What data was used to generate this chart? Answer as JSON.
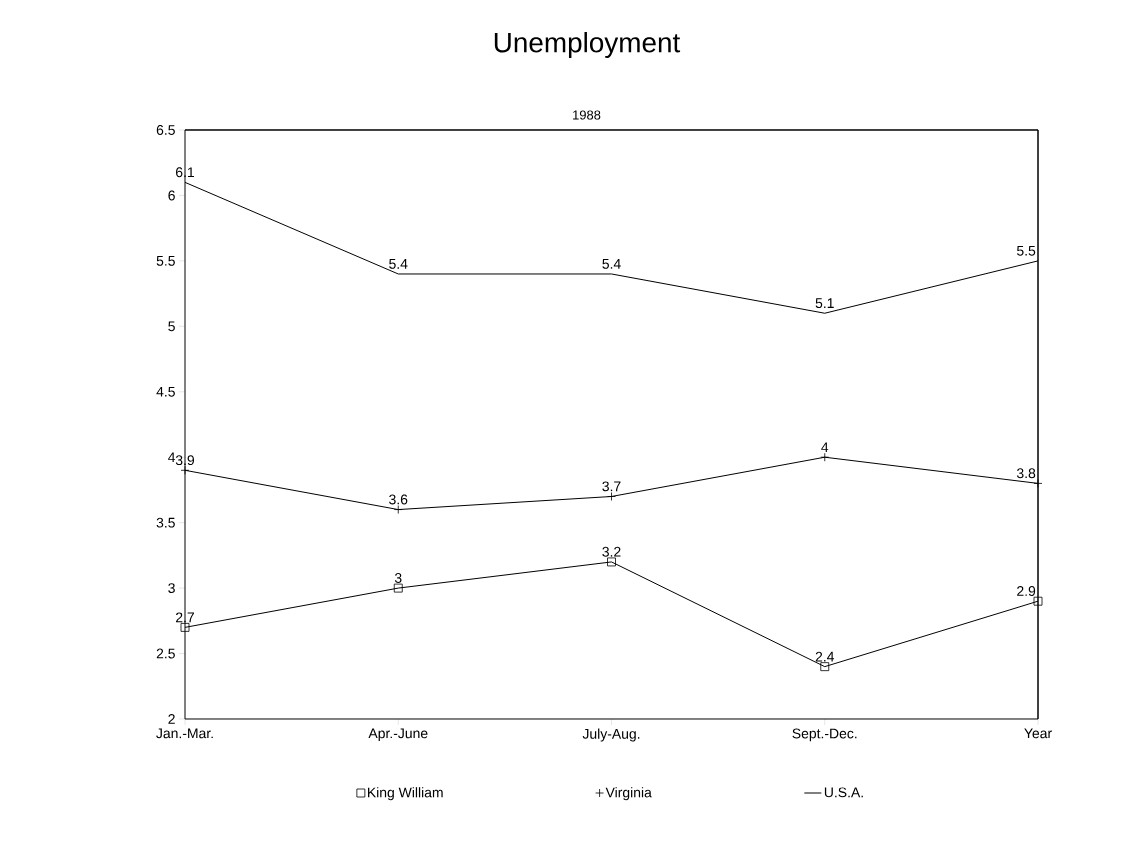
{
  "chart_data": {
    "type": "line",
    "title": "Unemployment",
    "subtitle": "1988",
    "categories": [
      "Jan.-Mar.",
      "Apr.-June",
      "July-Aug.",
      "Sept.-Dec.",
      "Year"
    ],
    "series": [
      {
        "name": "King William",
        "color": "#000000",
        "marker": "square",
        "values": [
          2.7,
          3,
          3.2,
          2.4,
          2.9
        ]
      },
      {
        "name": "Virginia",
        "color": "#000000",
        "marker": "cross",
        "values": [
          3.9,
          3.6,
          3.7,
          4,
          3.8
        ]
      },
      {
        "name": "U.S.A.",
        "color": "#000000",
        "marker": "none",
        "values": [
          6.1,
          5.4,
          5.4,
          5.1,
          5.5
        ]
      }
    ],
    "ylim": [
      2,
      6.5
    ],
    "yticks": [
      2,
      2.5,
      3,
      3.5,
      4,
      4.5,
      5,
      5.5,
      6,
      6.5
    ],
    "data_labels": true,
    "legend": "bottom",
    "grid": false,
    "line_style": "solid"
  }
}
